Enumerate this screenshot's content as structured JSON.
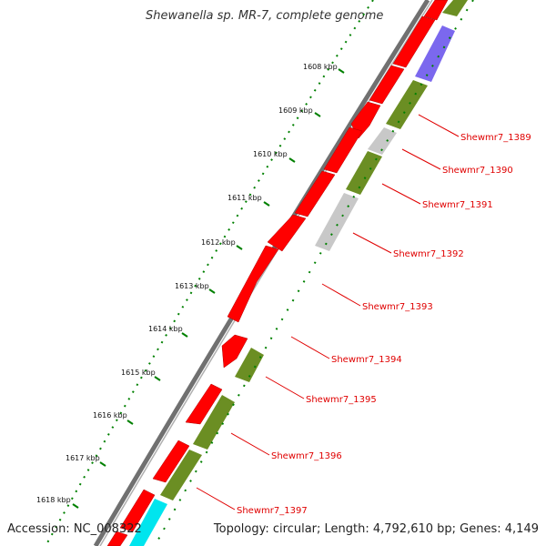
{
  "title": "Shewanella sp. MR-7, complete genome",
  "footer": {
    "accession": "Accession: NC_008322",
    "summary": "Topology: circular; Length: 4,792,610 bp; Genes: 4,149"
  },
  "axis_ticks": [
    "1608 kbp",
    "1609 kbp",
    "1610 kbp",
    "1611 kbp",
    "1612 kbp",
    "1613 kbp",
    "1614 kbp",
    "1615 kbp",
    "1616 kbp",
    "1617 kbp",
    "1618 kbp"
  ],
  "gene_labels": [
    "Shewmr7_1389",
    "Shewmr7_1390",
    "Shewmr7_1391",
    "Shewmr7_1392",
    "Shewmr7_1393",
    "Shewmr7_1394",
    "Shewmr7_1395",
    "Shewmr7_1396",
    "Shewmr7_1397"
  ],
  "colors": {
    "cds": "#ff0000",
    "cog_green": "#6b8e23",
    "cog_purple": "#7b68ee",
    "cog_gray": "#c8c8c8",
    "cog_cyan": "#00e5ee",
    "backbone": "#808080",
    "ticks": "#008000",
    "label": "#e00000"
  }
}
